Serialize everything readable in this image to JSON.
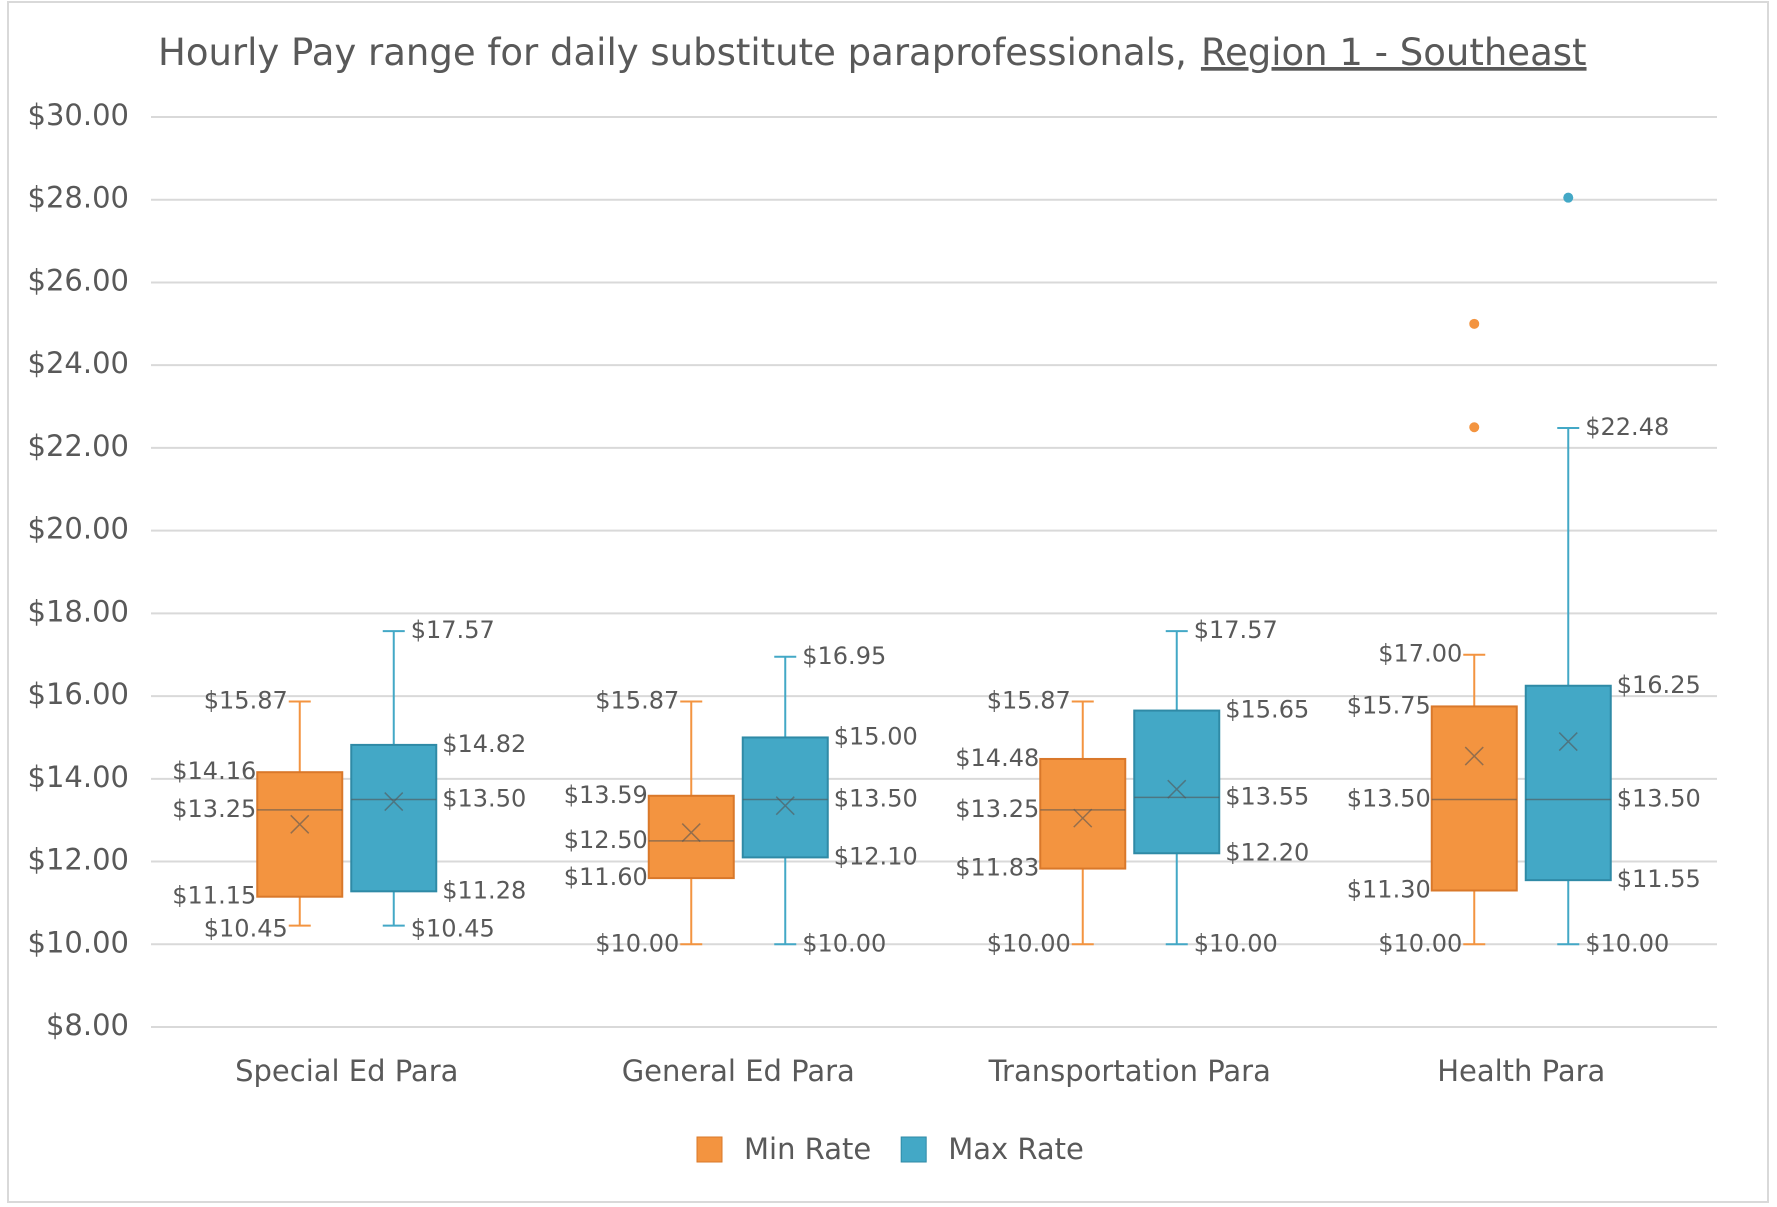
{
  "chart_data": {
    "type": "box",
    "title": "Hourly Pay range for daily substitute paraprofessionals,",
    "title_underlined": "Region 1 - Southeast",
    "categories": [
      "Special Ed Para",
      "General Ed Para",
      "Transportation Para",
      "Health Para"
    ],
    "ylim": [
      8,
      30
    ],
    "yticks": [
      {
        "value": 8,
        "label": "$8.00"
      },
      {
        "value": 10,
        "label": "$10.00"
      },
      {
        "value": 12,
        "label": "$12.00"
      },
      {
        "value": 14,
        "label": "$14.00"
      },
      {
        "value": 16,
        "label": "$16.00"
      },
      {
        "value": 18,
        "label": "$18.00"
      },
      {
        "value": 20,
        "label": "$20.00"
      },
      {
        "value": 22,
        "label": "$22.00"
      },
      {
        "value": 24,
        "label": "$24.00"
      },
      {
        "value": 26,
        "label": "$26.00"
      },
      {
        "value": 28,
        "label": "$28.00"
      },
      {
        "value": 30,
        "label": "$30.00"
      }
    ],
    "grid": true,
    "legend": "bottom",
    "series": [
      {
        "name": "Min Rate",
        "color": "#f39440",
        "boxes": [
          {
            "min": 10.45,
            "q1": 11.15,
            "median": 13.25,
            "q3": 14.16,
            "max": 15.87,
            "mean": 12.9,
            "outliers": [],
            "labels": {
              "min": "$10.45",
              "q1": "$11.15",
              "median": "$13.25",
              "q3": "$14.16",
              "max": "$15.87"
            }
          },
          {
            "min": 10.0,
            "q1": 11.6,
            "median": 12.5,
            "q3": 13.59,
            "max": 15.87,
            "mean": 12.7,
            "outliers": [],
            "labels": {
              "min": "$10.00",
              "q1": "$11.60",
              "median": "$12.50",
              "q3": "$13.59",
              "max": "$15.87"
            }
          },
          {
            "min": 10.0,
            "q1": 11.83,
            "median": 13.25,
            "q3": 14.48,
            "max": 15.87,
            "mean": 13.05,
            "outliers": [],
            "labels": {
              "min": "$10.00",
              "q1": "$11.83",
              "median": "$13.25",
              "q3": "$14.48",
              "max": "$15.87"
            }
          },
          {
            "min": 10.0,
            "q1": 11.3,
            "median": 13.5,
            "q3": 15.75,
            "max": 17.0,
            "mean": 14.55,
            "outliers": [
              22.5,
              25.0
            ],
            "labels": {
              "min": "$10.00",
              "q1": "$11.30",
              "median": "$13.50",
              "q3": "$15.75",
              "max": "$17.00"
            }
          }
        ]
      },
      {
        "name": "Max Rate",
        "color": "#43a8c6",
        "boxes": [
          {
            "min": 10.45,
            "q1": 11.28,
            "median": 13.5,
            "q3": 14.82,
            "max": 17.57,
            "mean": 13.45,
            "outliers": [],
            "labels": {
              "min": "$10.45",
              "q1": "$11.28",
              "median": "$13.50",
              "q3": "$14.82",
              "max": "$17.57"
            }
          },
          {
            "min": 10.0,
            "q1": 12.1,
            "median": 13.5,
            "q3": 15.0,
            "max": 16.95,
            "mean": 13.35,
            "outliers": [],
            "labels": {
              "min": "$10.00",
              "q1": "$12.10",
              "median": "$13.50",
              "q3": "$15.00",
              "max": "$16.95"
            }
          },
          {
            "min": 10.0,
            "q1": 12.2,
            "median": 13.55,
            "q3": 15.65,
            "max": 17.57,
            "mean": 13.75,
            "outliers": [],
            "labels": {
              "min": "$10.00",
              "q1": "$12.20",
              "median": "$13.55",
              "q3": "$15.65",
              "max": "$17.57"
            }
          },
          {
            "min": 10.0,
            "q1": 11.55,
            "median": 13.5,
            "q3": 16.25,
            "max": 22.48,
            "mean": 14.9,
            "outliers": [
              28.05
            ],
            "labels": {
              "min": "$10.00",
              "q1": "$11.55",
              "median": "$13.50",
              "q3": "$16.25",
              "max": "$22.48"
            }
          }
        ]
      }
    ]
  }
}
